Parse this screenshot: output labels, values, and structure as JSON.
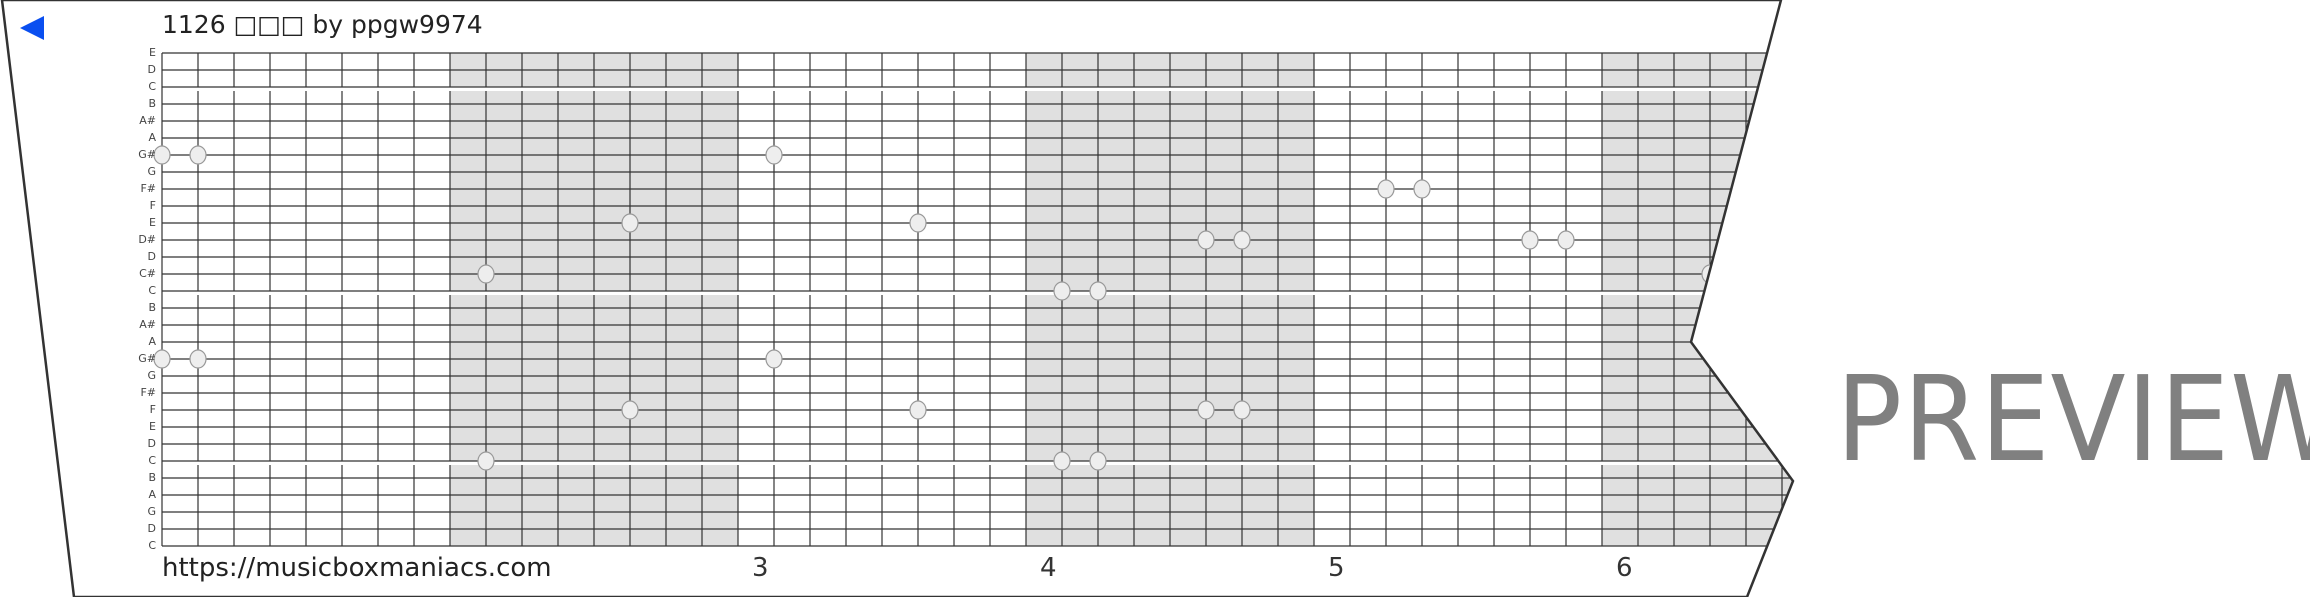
{
  "title": "1126 □□□ by ppgw9974",
  "url": "https://musicboxmaniacs.com",
  "watermark": "PREVIEW",
  "back_icon": "back-triangle-icon",
  "colors": {
    "accent": "#0a4ff0",
    "shade": "#e0e0e0",
    "grid": "#333333",
    "note": "#eeeeee"
  },
  "measure_labels": [
    {
      "measure": 3,
      "label": "3"
    },
    {
      "measure": 4,
      "label": "4"
    },
    {
      "measure": 5,
      "label": "5"
    },
    {
      "measure": 6,
      "label": "6"
    }
  ],
  "beats_per_measure": 8,
  "pitch_labels": [
    "E",
    "D",
    "C",
    "B",
    "A#",
    "A",
    "G#",
    "G",
    "F#",
    "F",
    "E",
    "D#",
    "D",
    "C#",
    "C",
    "B",
    "A#",
    "A",
    "G#",
    "G",
    "F#",
    "F",
    "E",
    "D",
    "C",
    "B",
    "A",
    "G",
    "D",
    "C"
  ],
  "notes": [
    {
      "beat": 0,
      "pitch_index": 6
    },
    {
      "beat": 1,
      "pitch_index": 6
    },
    {
      "beat": 17,
      "pitch_index": 6
    },
    {
      "beat": 34,
      "pitch_index": 8
    },
    {
      "beat": 35,
      "pitch_index": 8
    },
    {
      "beat": 13,
      "pitch_index": 10
    },
    {
      "beat": 21,
      "pitch_index": 10
    },
    {
      "beat": 29,
      "pitch_index": 11
    },
    {
      "beat": 30,
      "pitch_index": 11
    },
    {
      "beat": 38,
      "pitch_index": 11
    },
    {
      "beat": 39,
      "pitch_index": 11
    },
    {
      "beat": 9,
      "pitch_index": 13
    },
    {
      "beat": 43,
      "pitch_index": 13
    },
    {
      "beat": 25,
      "pitch_index": 14
    },
    {
      "beat": 26,
      "pitch_index": 14
    },
    {
      "beat": 0,
      "pitch_index": 18
    },
    {
      "beat": 1,
      "pitch_index": 18
    },
    {
      "beat": 17,
      "pitch_index": 18
    },
    {
      "beat": 13,
      "pitch_index": 21
    },
    {
      "beat": 21,
      "pitch_index": 21
    },
    {
      "beat": 29,
      "pitch_index": 21
    },
    {
      "beat": 30,
      "pitch_index": 21
    },
    {
      "beat": 9,
      "pitch_index": 24
    },
    {
      "beat": 25,
      "pitch_index": 24
    },
    {
      "beat": 26,
      "pitch_index": 24
    }
  ]
}
